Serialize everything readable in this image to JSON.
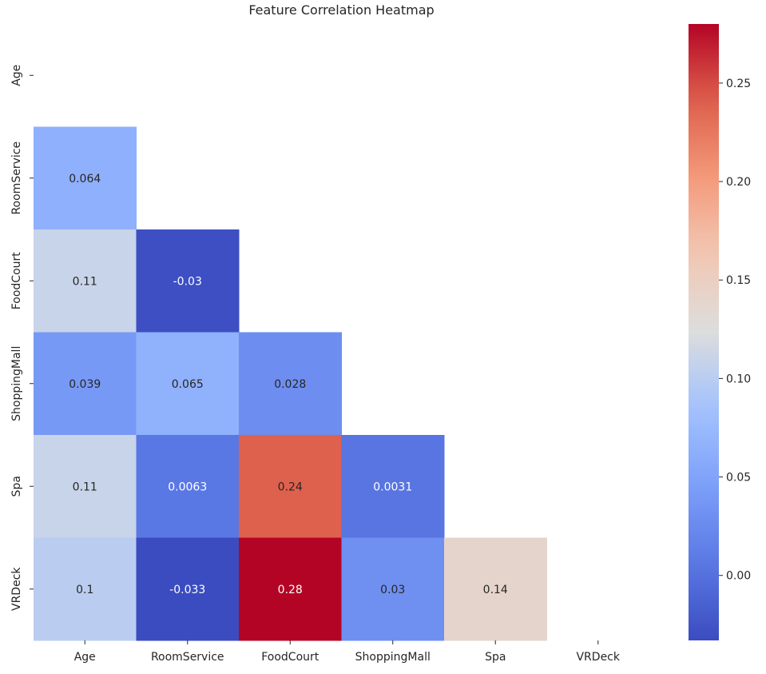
{
  "chart_data": {
    "type": "heatmap",
    "title": "Feature Correlation Heatmap",
    "labels": [
      "Age",
      "RoomService",
      "FoodCourt",
      "ShoppingMall",
      "Spa",
      "VRDeck"
    ],
    "mask": "upper-triangle-including-diagonal",
    "cells": [
      {
        "row": "RoomService",
        "col": "Age",
        "value": 0.064,
        "label": "0.064"
      },
      {
        "row": "FoodCourt",
        "col": "Age",
        "value": 0.11,
        "label": "0.11"
      },
      {
        "row": "FoodCourt",
        "col": "RoomService",
        "value": -0.03,
        "label": "-0.03"
      },
      {
        "row": "ShoppingMall",
        "col": "Age",
        "value": 0.039,
        "label": "0.039"
      },
      {
        "row": "ShoppingMall",
        "col": "RoomService",
        "value": 0.065,
        "label": "0.065"
      },
      {
        "row": "ShoppingMall",
        "col": "FoodCourt",
        "value": 0.028,
        "label": "0.028"
      },
      {
        "row": "Spa",
        "col": "Age",
        "value": 0.11,
        "label": "0.11"
      },
      {
        "row": "Spa",
        "col": "RoomService",
        "value": 0.0063,
        "label": "0.0063"
      },
      {
        "row": "Spa",
        "col": "FoodCourt",
        "value": 0.24,
        "label": "0.24"
      },
      {
        "row": "Spa",
        "col": "ShoppingMall",
        "value": 0.0031,
        "label": "0.0031"
      },
      {
        "row": "VRDeck",
        "col": "Age",
        "value": 0.1,
        "label": "0.1"
      },
      {
        "row": "VRDeck",
        "col": "RoomService",
        "value": -0.033,
        "label": "-0.033"
      },
      {
        "row": "VRDeck",
        "col": "FoodCourt",
        "value": 0.28,
        "label": "0.28"
      },
      {
        "row": "VRDeck",
        "col": "ShoppingMall",
        "value": 0.03,
        "label": "0.03"
      },
      {
        "row": "VRDeck",
        "col": "Spa",
        "value": 0.14,
        "label": "0.14"
      }
    ],
    "colormap": "coolwarm",
    "colorbar": {
      "range": [
        -0.033,
        0.28
      ],
      "ticks": [
        0.0,
        0.05,
        0.1,
        0.15,
        0.2,
        0.25
      ],
      "tick_labels": [
        "0.00",
        "0.05",
        "0.10",
        "0.15",
        "0.20",
        "0.25"
      ],
      "position": "right"
    },
    "grid": false
  }
}
